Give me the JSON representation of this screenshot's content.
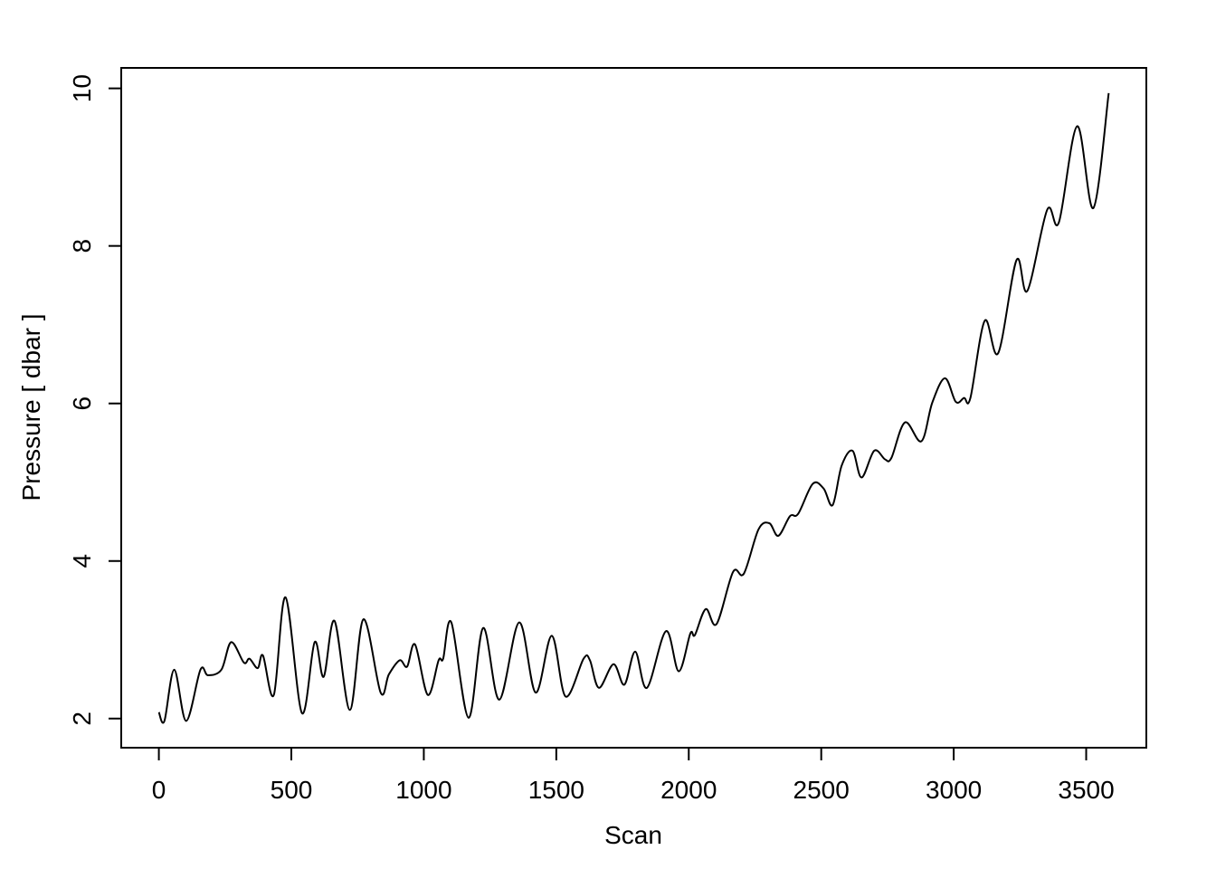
{
  "chart_data": {
    "type": "line",
    "x_label": "Scan",
    "y_label": "Pressure [ dbar ]",
    "xlim": [
      -142,
      3727
    ],
    "ylim": [
      1.63,
      10.26
    ],
    "xticks": [
      0,
      500,
      1000,
      1500,
      2000,
      2500,
      3000,
      3500
    ],
    "yticks": [
      2,
      4,
      6,
      8,
      10
    ],
    "x": [
      0,
      21,
      58,
      103,
      157,
      185,
      236,
      273,
      321,
      342,
      373,
      393,
      434,
      478,
      540,
      588,
      622,
      663,
      721,
      772,
      837,
      868,
      909,
      937,
      967,
      1015,
      1056,
      1073,
      1104,
      1169,
      1224,
      1285,
      1360,
      1422,
      1483,
      1535,
      1603,
      1627,
      1661,
      1716,
      1757,
      1798,
      1842,
      1914,
      1962,
      2006,
      2023,
      2064,
      2105,
      2167,
      2208,
      2263,
      2304,
      2338,
      2382,
      2413,
      2468,
      2509,
      2543,
      2577,
      2618,
      2652,
      2700,
      2741,
      2765,
      2816,
      2878,
      2919,
      2967,
      3008,
      3039,
      3063,
      3117,
      3168,
      3237,
      3278,
      3353,
      3397,
      3466,
      3527,
      3585
    ],
    "series": [
      {
        "color": "#000000",
        "values": [
          2.08,
          1.97,
          2.62,
          1.97,
          2.62,
          2.55,
          2.62,
          2.97,
          2.71,
          2.76,
          2.64,
          2.8,
          2.3,
          3.54,
          2.07,
          2.97,
          2.53,
          3.24,
          2.11,
          3.26,
          2.33,
          2.56,
          2.74,
          2.66,
          2.94,
          2.3,
          2.74,
          2.76,
          3.22,
          2.01,
          3.15,
          2.24,
          3.22,
          2.33,
          3.05,
          2.28,
          2.76,
          2.74,
          2.39,
          2.69,
          2.43,
          2.85,
          2.39,
          3.11,
          2.6,
          3.08,
          3.06,
          3.39,
          3.2,
          3.86,
          3.84,
          4.4,
          4.48,
          4.32,
          4.57,
          4.6,
          4.98,
          4.92,
          4.71,
          5.21,
          5.4,
          5.06,
          5.4,
          5.29,
          5.31,
          5.76,
          5.52,
          6.01,
          6.32,
          6.02,
          6.07,
          6.07,
          7.05,
          6.64,
          7.82,
          7.43,
          8.46,
          8.3,
          9.52,
          8.48,
          9.94
        ]
      }
    ]
  }
}
